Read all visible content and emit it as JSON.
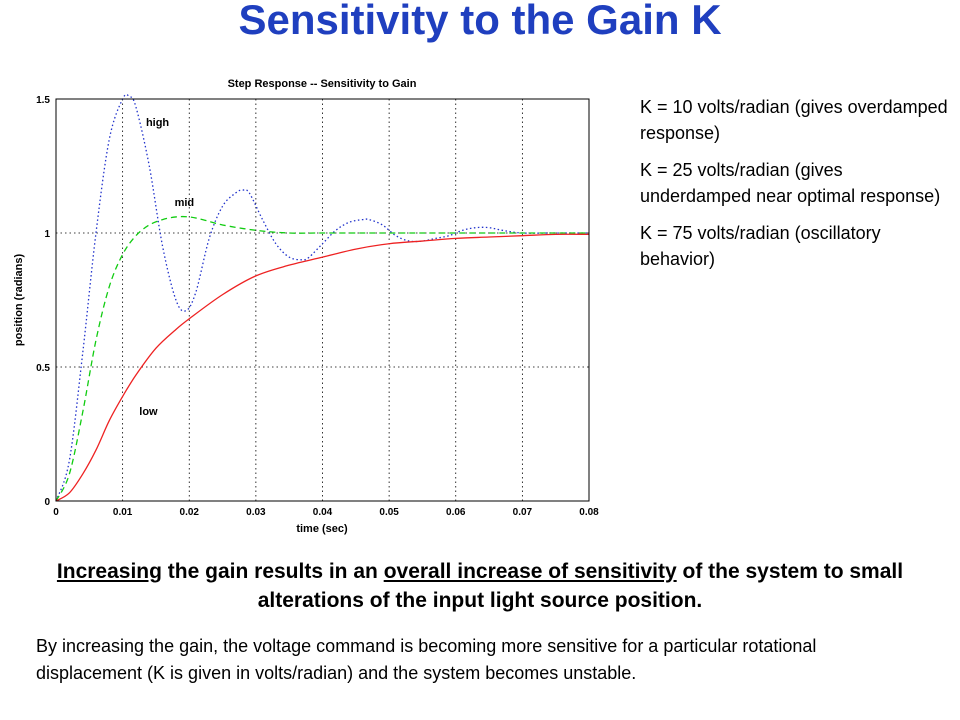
{
  "title": "Sensitivity to the Gain K",
  "notes": [
    "K = 10 volts/radian (gives overdamped response)",
    "K = 25 volts/radian (gives underdamped near optimal response)",
    "K = 75 volts/radian (oscillatory behavior)"
  ],
  "headline": {
    "part1": "Increasing",
    "part2": " the gain results in an ",
    "part3": "overall increase of sensitivity",
    "part4": " of the system to small alterations of the input light source position."
  },
  "body": "By increasing the gain, the voltage command is becoming  more sensitive for a particular rotational displacement (K is given in volts/radian) and the system becomes unstable.",
  "chart_data": {
    "type": "line",
    "title": "Step Response -- Sensitivity to Gain",
    "xlabel": "time (sec)",
    "ylabel": "position (radians)",
    "xlim": [
      0,
      0.08
    ],
    "ylim": [
      0,
      1.5
    ],
    "xticks": [
      0,
      0.01,
      0.02,
      0.03,
      0.04,
      0.05,
      0.06,
      0.07,
      0.08
    ],
    "xtick_labels": [
      "0",
      "0.01",
      "0.02",
      "0.03",
      "0.04",
      "0.05",
      "0.06",
      "0.07",
      "0.08"
    ],
    "yticks": [
      0,
      0.5,
      1,
      1.5
    ],
    "ytick_labels": [
      "0",
      "0.5",
      "1",
      "1.5"
    ],
    "grid": true,
    "series": [
      {
        "name": "high",
        "color": "#2233cc",
        "style": "dotted",
        "x": [
          0,
          0.002,
          0.004,
          0.006,
          0.008,
          0.01,
          0.011,
          0.012,
          0.014,
          0.016,
          0.018,
          0.0195,
          0.021,
          0.023,
          0.025,
          0.027,
          0.028,
          0.029,
          0.031,
          0.033,
          0.035,
          0.037,
          0.038,
          0.04,
          0.042,
          0.044,
          0.046,
          0.047,
          0.049,
          0.051,
          0.053,
          0.055,
          0.057,
          0.059,
          0.061,
          0.063,
          0.065,
          0.067,
          0.07,
          0.075,
          0.08
        ],
        "y": [
          0,
          0.15,
          0.55,
          1.0,
          1.35,
          1.5,
          1.51,
          1.47,
          1.25,
          0.95,
          0.75,
          0.71,
          0.78,
          0.98,
          1.1,
          1.15,
          1.16,
          1.15,
          1.05,
          0.96,
          0.91,
          0.9,
          0.91,
          0.96,
          1.01,
          1.04,
          1.05,
          1.05,
          1.03,
          0.99,
          0.97,
          0.97,
          0.98,
          0.99,
          1.01,
          1.02,
          1.02,
          1.01,
          1.0,
          1.0,
          1.0
        ]
      },
      {
        "name": "mid",
        "color": "#11cc11",
        "style": "dashed",
        "x": [
          0,
          0.002,
          0.004,
          0.006,
          0.008,
          0.01,
          0.012,
          0.014,
          0.016,
          0.018,
          0.02,
          0.022,
          0.025,
          0.03,
          0.035,
          0.04,
          0.05,
          0.06,
          0.07,
          0.08
        ],
        "y": [
          0,
          0.1,
          0.33,
          0.6,
          0.8,
          0.92,
          0.99,
          1.03,
          1.05,
          1.06,
          1.06,
          1.05,
          1.03,
          1.01,
          1.0,
          1.0,
          1.0,
          1.0,
          1.0,
          1.0
        ]
      },
      {
        "name": "low",
        "color": "#ee2222",
        "style": "solid",
        "x": [
          0,
          0.002,
          0.004,
          0.006,
          0.008,
          0.01,
          0.012,
          0.015,
          0.018,
          0.02,
          0.025,
          0.03,
          0.035,
          0.04,
          0.045,
          0.05,
          0.055,
          0.06,
          0.065,
          0.07,
          0.075,
          0.08
        ],
        "y": [
          0,
          0.03,
          0.1,
          0.19,
          0.3,
          0.39,
          0.47,
          0.57,
          0.64,
          0.68,
          0.77,
          0.84,
          0.88,
          0.91,
          0.94,
          0.96,
          0.97,
          0.98,
          0.985,
          0.99,
          0.995,
          0.995
        ]
      }
    ],
    "annotations": [
      {
        "text": "high",
        "x": 0.0135,
        "y": 1.4
      },
      {
        "text": "mid",
        "x": 0.0178,
        "y": 1.1
      },
      {
        "text": "low",
        "x": 0.0125,
        "y": 0.32
      }
    ]
  }
}
